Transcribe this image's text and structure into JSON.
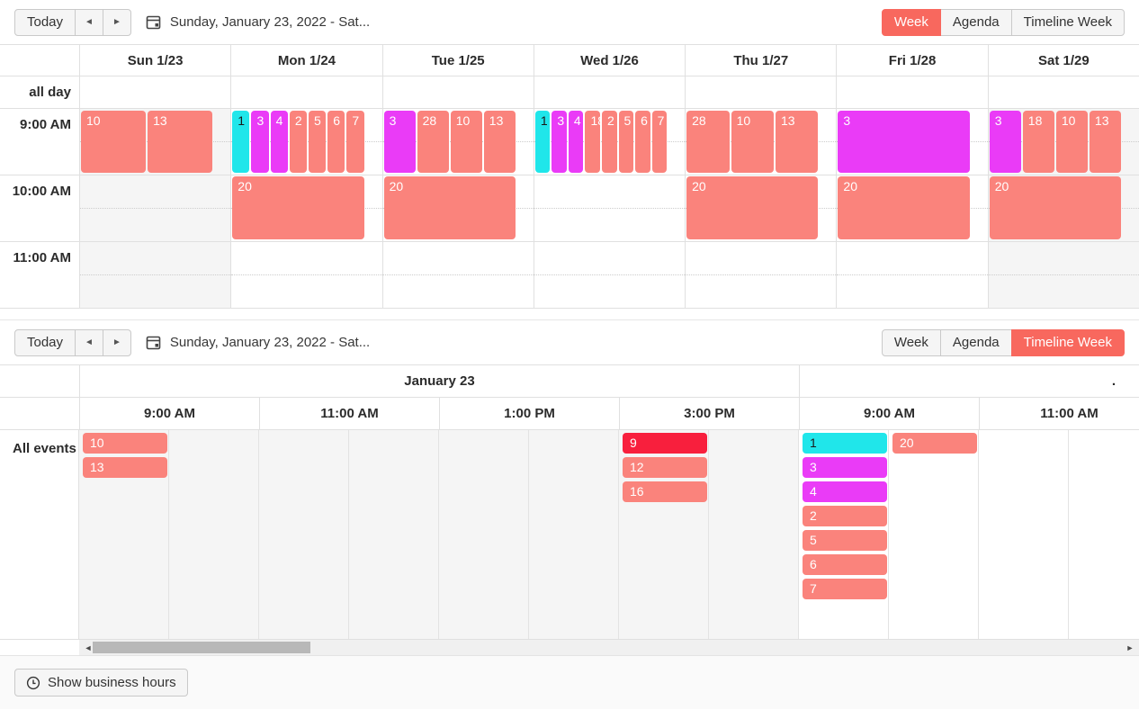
{
  "palette": {
    "salmon": "#FA837C",
    "magenta": "#EA3BF7",
    "cyan": "#20E6EA",
    "red": "#F81F3D",
    "active_button": "#F8685E",
    "nonwork_bg": "#F5F5F5",
    "border": "#E0E0E0"
  },
  "icons": {
    "prev_icon": "◄",
    "next_icon": "►",
    "scroll_left_icon": "◄",
    "scroll_right_icon": "►",
    "calendar_icon": "calendar",
    "clock_icon": "clock"
  },
  "toolbar_top": {
    "today": "Today",
    "date_range": "Sunday, January 23, 2022 - Sat...",
    "views": [
      "Week",
      "Agenda",
      "Timeline Week"
    ],
    "active_view": "Week"
  },
  "toolbar_bottom": {
    "today": "Today",
    "date_range": "Sunday, January 23, 2022 - Sat...",
    "views": [
      "Week",
      "Agenda",
      "Timeline Week"
    ],
    "active_view": "Timeline Week"
  },
  "week_view": {
    "all_day_label": "all day",
    "time_labels": [
      "9:00 AM",
      "10:00 AM",
      "11:00 AM"
    ],
    "days": [
      {
        "label": "Sun 1/23",
        "nonwork": true,
        "events_9am": [
          {
            "label": "10",
            "color": "salmon"
          },
          {
            "label": "13",
            "color": "salmon"
          }
        ],
        "event_10am": null
      },
      {
        "label": "Mon 1/24",
        "nonwork": false,
        "events_9am": [
          {
            "label": "1",
            "color": "cyan"
          },
          {
            "label": "3",
            "color": "magenta"
          },
          {
            "label": "4",
            "color": "magenta"
          },
          {
            "label": "2",
            "color": "salmon"
          },
          {
            "label": "5",
            "color": "salmon"
          },
          {
            "label": "6",
            "color": "salmon"
          },
          {
            "label": "7",
            "color": "salmon"
          }
        ],
        "event_10am": {
          "label": "20",
          "color": "salmon"
        }
      },
      {
        "label": "Tue 1/25",
        "nonwork": false,
        "events_9am": [
          {
            "label": "3",
            "color": "magenta"
          },
          {
            "label": "28",
            "color": "salmon"
          },
          {
            "label": "10",
            "color": "salmon"
          },
          {
            "label": "13",
            "color": "salmon"
          }
        ],
        "event_10am": {
          "label": "20",
          "color": "salmon"
        }
      },
      {
        "label": "Wed 1/26",
        "nonwork": false,
        "events_9am": [
          {
            "label": "1",
            "color": "cyan"
          },
          {
            "label": "3",
            "color": "magenta"
          },
          {
            "label": "4",
            "color": "magenta"
          },
          {
            "label": "18",
            "color": "salmon"
          },
          {
            "label": "2",
            "color": "salmon"
          },
          {
            "label": "5",
            "color": "salmon"
          },
          {
            "label": "6",
            "color": "salmon"
          },
          {
            "label": "7",
            "color": "salmon"
          }
        ],
        "event_10am": null
      },
      {
        "label": "Thu 1/27",
        "nonwork": false,
        "events_9am": [
          {
            "label": "28",
            "color": "salmon"
          },
          {
            "label": "10",
            "color": "salmon"
          },
          {
            "label": "13",
            "color": "salmon"
          }
        ],
        "event_10am": {
          "label": "20",
          "color": "salmon"
        }
      },
      {
        "label": "Fri 1/28",
        "nonwork": false,
        "events_9am": [
          {
            "label": "3",
            "color": "magenta"
          }
        ],
        "event_10am": {
          "label": "20",
          "color": "salmon"
        }
      },
      {
        "label": "Sat 1/29",
        "nonwork": true,
        "events_9am": [
          {
            "label": "3",
            "color": "magenta"
          },
          {
            "label": "18",
            "color": "salmon"
          },
          {
            "label": "10",
            "color": "salmon"
          },
          {
            "label": "13",
            "color": "salmon"
          }
        ],
        "event_10am": {
          "label": "20",
          "color": "salmon"
        }
      }
    ]
  },
  "timeline_view": {
    "row_label": "All events",
    "date_groups": [
      {
        "label": "January 23",
        "span": 4
      },
      {
        "label": ".",
        "span": 2
      }
    ],
    "time_headers": [
      "9:00 AM",
      "11:00 AM",
      "1:00 PM",
      "3:00 PM",
      "9:00 AM",
      "11:00 AM"
    ],
    "nonwork_slot_count": 8,
    "total_slot_count": 12,
    "events": [
      {
        "label": "10",
        "color": "salmon",
        "slot": 0,
        "stack": 0
      },
      {
        "label": "13",
        "color": "salmon",
        "slot": 0,
        "stack": 1
      },
      {
        "label": "9",
        "color": "red",
        "slot": 6,
        "stack": 0
      },
      {
        "label": "12",
        "color": "salmon",
        "slot": 6,
        "stack": 1
      },
      {
        "label": "16",
        "color": "salmon",
        "slot": 6,
        "stack": 2
      },
      {
        "label": "1",
        "color": "cyan",
        "slot": 8,
        "stack": 0
      },
      {
        "label": "3",
        "color": "magenta",
        "slot": 8,
        "stack": 1
      },
      {
        "label": "4",
        "color": "magenta",
        "slot": 8,
        "stack": 2
      },
      {
        "label": "2",
        "color": "salmon",
        "slot": 8,
        "stack": 3
      },
      {
        "label": "5",
        "color": "salmon",
        "slot": 8,
        "stack": 4
      },
      {
        "label": "6",
        "color": "salmon",
        "slot": 8,
        "stack": 5
      },
      {
        "label": "7",
        "color": "salmon",
        "slot": 8,
        "stack": 6
      },
      {
        "label": "20",
        "color": "salmon",
        "slot": 9,
        "stack": 0
      }
    ]
  },
  "footer": {
    "business_hours_label": "Show business hours"
  }
}
